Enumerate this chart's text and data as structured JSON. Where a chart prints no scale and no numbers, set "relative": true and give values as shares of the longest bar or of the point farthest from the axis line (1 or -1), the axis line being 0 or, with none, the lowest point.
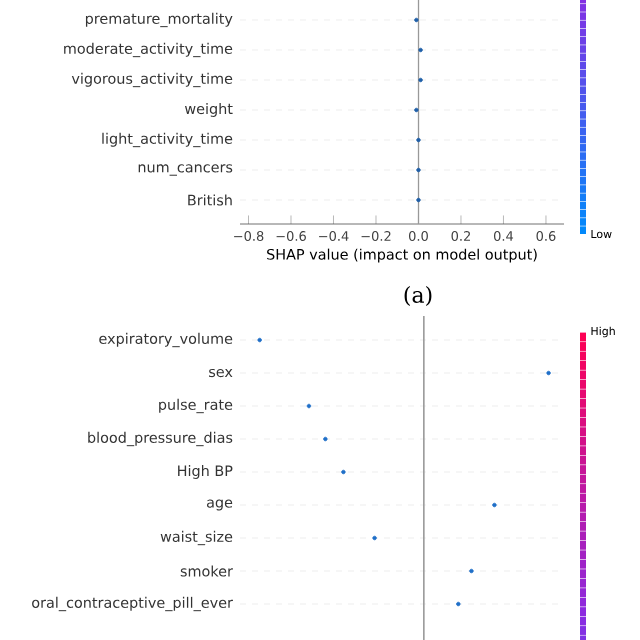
{
  "chart_data": [
    {
      "type": "scatter",
      "orientation": "horizontal",
      "categories": [
        "premature_mortality",
        "moderate_activity_time",
        "vigorous_activity_time",
        "weight",
        "light_activity_time",
        "num_cancers",
        "British"
      ],
      "values": [
        -0.01,
        0.01,
        0.01,
        -0.01,
        0.0,
        0.0,
        0.0
      ],
      "color": "#1f5fa8",
      "grid": "y",
      "xlim": [
        -0.84,
        0.685
      ],
      "xticks": [
        {
          "value": -0.8,
          "label": "−0.8"
        },
        {
          "value": -0.6,
          "label": "−0.6"
        },
        {
          "value": -0.4,
          "label": "−0.4"
        },
        {
          "value": -0.2,
          "label": "−0.2"
        },
        {
          "value": 0.0,
          "label": "0.0"
        },
        {
          "value": 0.2,
          "label": "0.2"
        },
        {
          "value": 0.4,
          "label": "0.4"
        },
        {
          "value": 0.6,
          "label": "0.6"
        }
      ],
      "xlabel": "SHAP value (impact on model output)",
      "annotations": [
        "(a)",
        "Low"
      ],
      "ref_lines": [
        {
          "axis": "x",
          "value": 0,
          "color": "#999999"
        }
      ]
    },
    {
      "type": "scatter",
      "orientation": "horizontal",
      "relative": true,
      "tick_labels": "y",
      "categories": [
        "expiratory_volume",
        "sex",
        "pulse_rate",
        "blood_pressure_dias",
        "High BP",
        "age",
        "waist_size",
        "smoker",
        "oral_contraceptive_pill_ever"
      ],
      "values": [
        -1,
        0.76,
        -0.7,
        -0.6,
        -0.49,
        0.43,
        -0.3,
        0.29,
        0.21
      ],
      "color": "#1f6fc8",
      "grid": "y",
      "ref_lines": [
        {
          "axis": "x",
          "value": 0,
          "color": "#999999"
        }
      ],
      "annotations": [
        "High"
      ]
    }
  ]
}
